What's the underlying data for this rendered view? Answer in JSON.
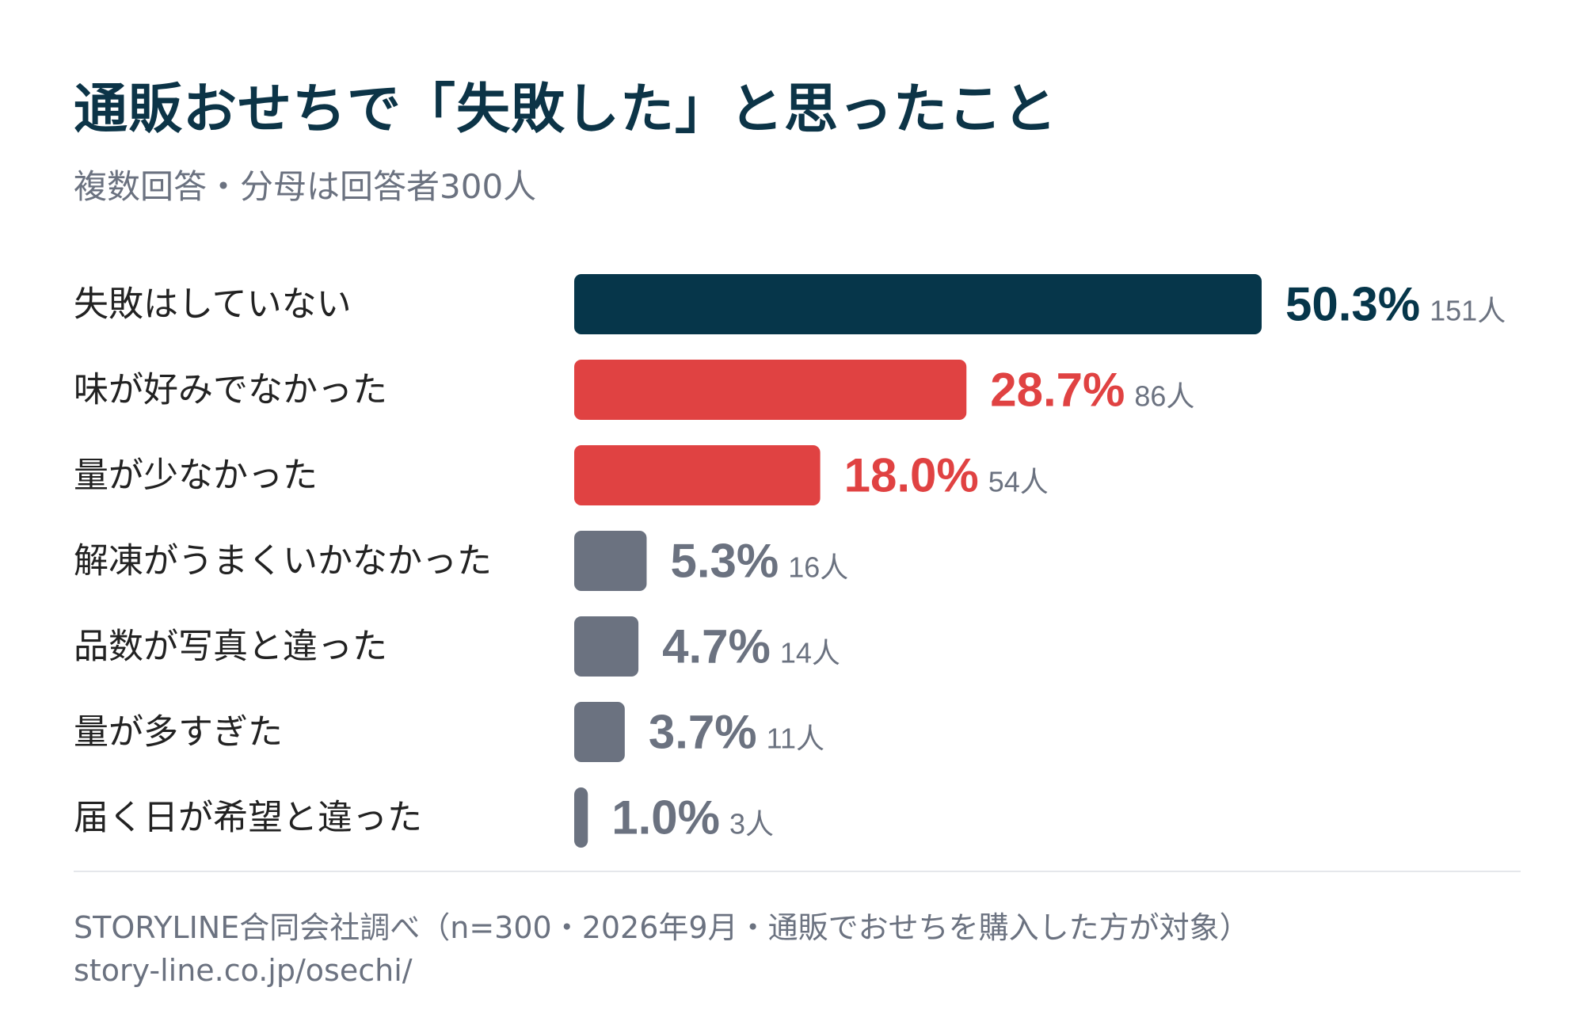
{
  "header": {
    "title": "通販おせちで「失敗した」と思ったこと",
    "subtitle": "複数回答・分母は回答者300人"
  },
  "colors": {
    "primary": "#06364a",
    "highlight": "#e04242",
    "neutral": "#6b7280",
    "label": "#222222"
  },
  "chart_data": {
    "type": "bar",
    "orientation": "horizontal",
    "title": "通販おせちで「失敗した」と思ったこと",
    "subtitle": "複数回答・分母は回答者300人",
    "unit": "%",
    "categories": [
      "失敗はしていない",
      "味が好みでなかった",
      "量が少なかった",
      "解凍がうまくいかなかった",
      "品数が写真と違った",
      "量が多すぎた",
      "届く日が希望と違った"
    ],
    "values": [
      50.3,
      28.7,
      18.0,
      5.3,
      4.7,
      3.7,
      1.0
    ],
    "value_labels": [
      "50.3%",
      "28.7%",
      "18.0%",
      "5.3%",
      "4.7%",
      "3.7%",
      "1.0%"
    ],
    "counts": [
      "151人",
      "86人",
      "54人",
      "16人",
      "14人",
      "11人",
      "3人"
    ],
    "bar_colors": [
      "#06364a",
      "#e04242",
      "#e04242",
      "#6b7280",
      "#6b7280",
      "#6b7280",
      "#6b7280"
    ],
    "grid": false,
    "legend": "none"
  },
  "footer": {
    "source": "STORYLINE合同会社調べ（n=300・2026年9月・通販でおせちを購入した方が対象）",
    "url": "story-line.co.jp/osechi/"
  }
}
